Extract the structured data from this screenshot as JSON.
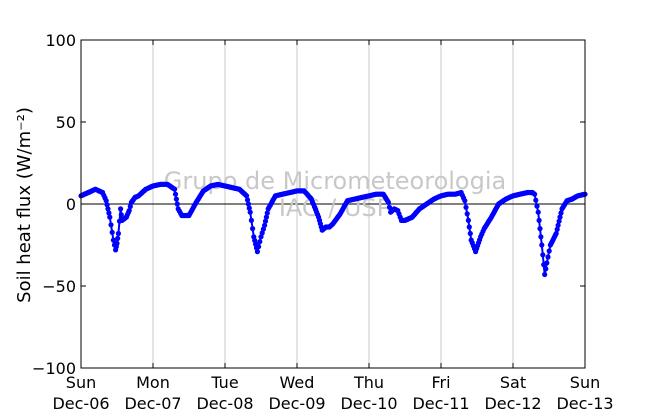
{
  "chart_data": {
    "type": "scatter",
    "title": "",
    "ylabel": "Soil heat flux (W/m⁻²)",
    "xlabel": "",
    "ylim": [
      -100,
      100
    ],
    "yticks": [
      100,
      50,
      0,
      -50,
      -100
    ],
    "ytick_labels": [
      "100",
      "50",
      "0",
      "−50",
      "−100"
    ],
    "xlim": [
      0,
      7
    ],
    "xticks": [
      {
        "day": "Sun",
        "date": "Dec-06"
      },
      {
        "day": "Mon",
        "date": "Dec-07"
      },
      {
        "day": "Tue",
        "date": "Dec-08"
      },
      {
        "day": "Wed",
        "date": "Dec-09"
      },
      {
        "day": "Thu",
        "date": "Dec-10"
      },
      {
        "day": "Fri",
        "date": "Dec-11"
      },
      {
        "day": "Sat",
        "date": "Dec-12"
      },
      {
        "day": "Sun",
        "date": "Dec-13"
      }
    ],
    "grid": "vertical",
    "zero_line": true,
    "series": [
      {
        "color": "#0000ff",
        "x": [
          0.0,
          0.1,
          0.2,
          0.3,
          0.35,
          0.4,
          0.45,
          0.48,
          0.5,
          0.52,
          0.55,
          0.57,
          0.6,
          0.63,
          0.67,
          0.7,
          0.75,
          0.8,
          0.85,
          0.9,
          1.0,
          1.1,
          1.2,
          1.3,
          1.35,
          1.4,
          1.45,
          1.5,
          1.6,
          1.7,
          1.8,
          1.9,
          2.0,
          2.1,
          2.2,
          2.3,
          2.35,
          2.4,
          2.45,
          2.5,
          2.55,
          2.6,
          2.7,
          2.8,
          2.9,
          3.0,
          3.1,
          3.2,
          3.3,
          3.35,
          3.4,
          3.45,
          3.5,
          3.55,
          3.6,
          3.7,
          3.8,
          3.9,
          4.0,
          4.1,
          4.2,
          4.27,
          4.3,
          4.35,
          4.4,
          4.45,
          4.5,
          4.6,
          4.7,
          4.8,
          4.9,
          5.0,
          5.1,
          5.2,
          5.28,
          5.33,
          5.38,
          5.42,
          5.48,
          5.55,
          5.6,
          5.7,
          5.8,
          5.9,
          6.0,
          6.1,
          6.2,
          6.27,
          6.3,
          6.35,
          6.4,
          6.44,
          6.47,
          6.52,
          6.6,
          6.68,
          6.75,
          6.82,
          6.9,
          7.0
        ],
        "y": [
          5,
          7,
          9,
          7,
          2,
          -8,
          -22,
          -28,
          -24,
          -18,
          -3,
          -10,
          -9,
          -8,
          -4,
          1,
          4,
          5,
          7,
          9,
          11,
          12,
          12,
          9,
          -3,
          -7,
          -7,
          -7,
          1,
          8,
          11,
          12,
          11,
          10,
          9,
          5,
          -5,
          -20,
          -29,
          -20,
          -13,
          -3,
          5,
          6,
          7,
          8,
          8,
          3,
          -8,
          -16,
          -14,
          -14,
          -12,
          -9,
          -6,
          2,
          3,
          4,
          5,
          6,
          6,
          1,
          -5,
          -3,
          -4,
          -10,
          -10,
          -8,
          -3,
          0,
          3,
          5,
          6,
          6,
          7,
          2,
          -10,
          -22,
          -29,
          -20,
          -15,
          -8,
          0,
          3,
          5,
          6,
          7,
          7,
          6,
          -5,
          -25,
          -43,
          -36,
          -25,
          -18,
          -3,
          2,
          3,
          5,
          6
        ]
      }
    ],
    "annotations": [
      "Grupo de Micrometeorologia",
      "IAG / USP"
    ]
  }
}
